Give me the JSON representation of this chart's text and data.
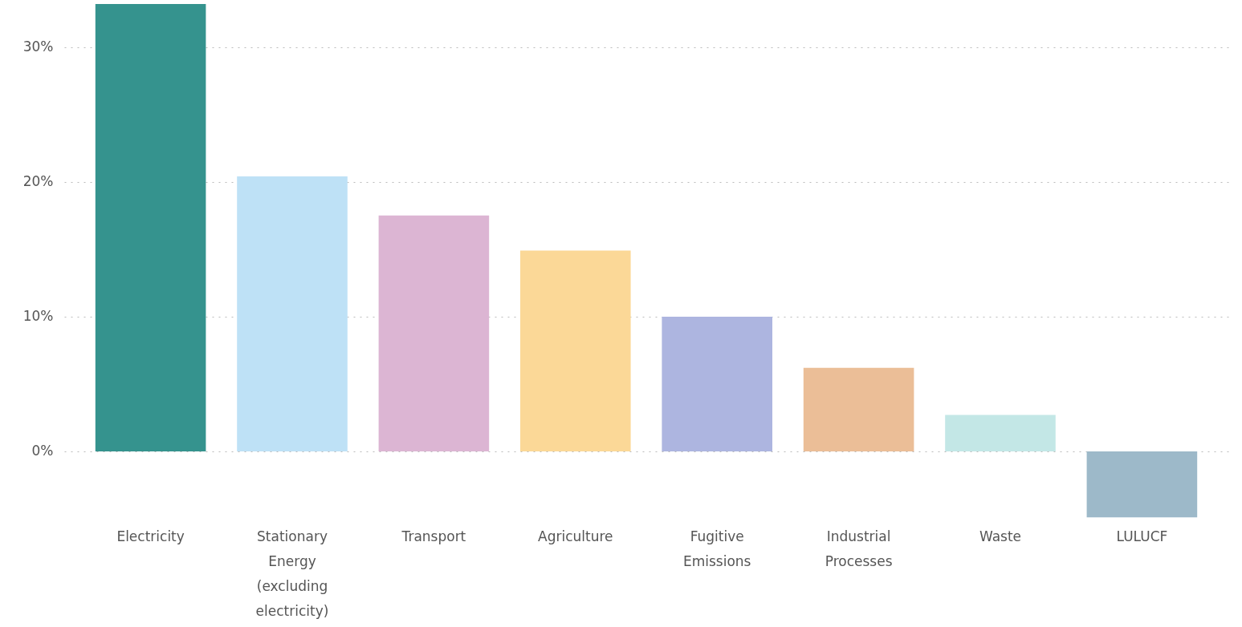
{
  "chart_data": {
    "type": "bar",
    "categories": [
      "Electricity",
      "Stationary Energy (excluding electricity)",
      "Transport",
      "Agriculture",
      "Fugitive Emissions",
      "Industrial Processes",
      "Waste",
      "LULUCF"
    ],
    "values": [
      33.2,
      20.4,
      17.5,
      14.9,
      10.0,
      6.2,
      2.7,
      -4.9
    ],
    "colors": [
      "#35938e",
      "#bee1f6",
      "#dcb5d3",
      "#fbd897",
      "#adb5e0",
      "#ebbe97",
      "#c3e7e6",
      "#9db9c9"
    ],
    "ylim": [
      -5,
      33.2
    ],
    "yticks": [
      {
        "value": 0,
        "label": "0%"
      },
      {
        "value": 10,
        "label": "10%"
      },
      {
        "value": 20,
        "label": "20%"
      },
      {
        "value": 30,
        "label": "30%"
      }
    ],
    "grid": "y"
  }
}
